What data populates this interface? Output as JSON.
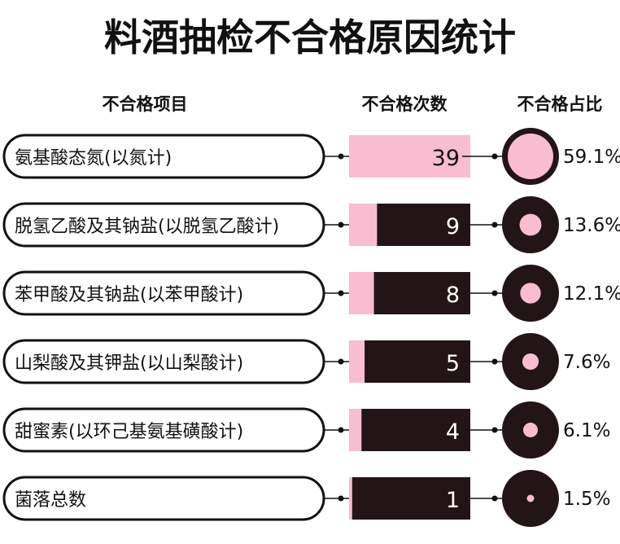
{
  "chart_data": {
    "type": "bar",
    "title": "料酒抽检不合格原因统计",
    "columns": [
      "不合格项目",
      "不合格次数",
      "不合格占比"
    ],
    "categories": [
      "氨基酸态氮(以氮计)",
      "脱氢乙酸及其钠盐(以脱氢乙酸计)",
      "苯甲酸及其钠盐(以苯甲酸计)",
      "山梨酸及其钾盐(以山梨酸计)",
      "甜蜜素(以环己基氨基磺酸计)",
      "菌落总数"
    ],
    "values": [
      39,
      9,
      8,
      5,
      4,
      1
    ],
    "percent_labels": [
      "59.1%",
      "13.6%",
      "12.1%",
      "7.6%",
      "6.1%",
      "1.5%"
    ],
    "percents": [
      59.1,
      13.6,
      12.1,
      7.6,
      6.1,
      1.5
    ],
    "colors": {
      "fill": "#f8bdd0",
      "dark": "#231517"
    }
  }
}
